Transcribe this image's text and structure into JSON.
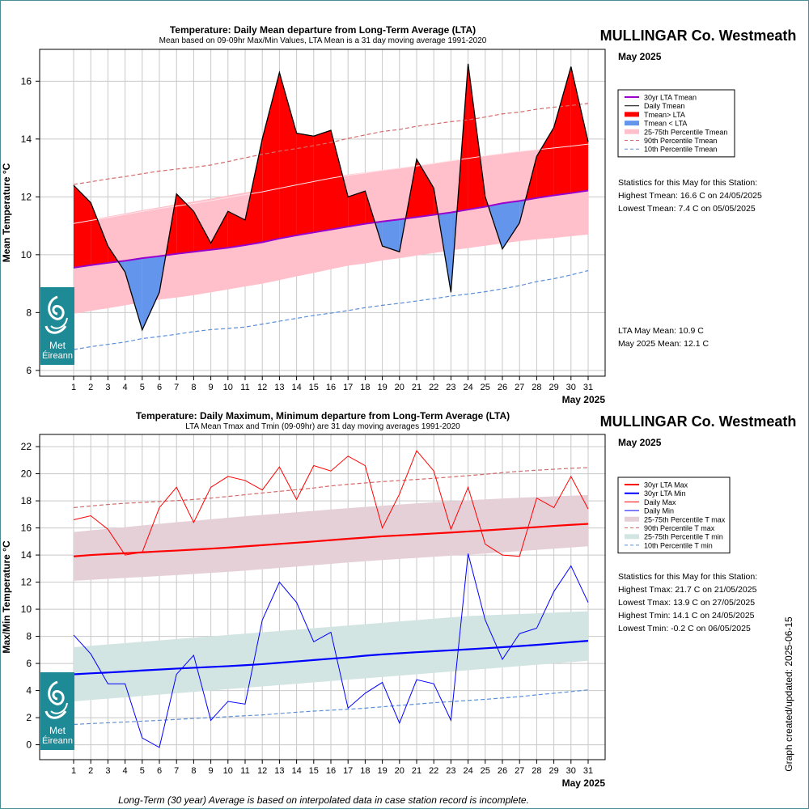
{
  "x_labels": [
    "1",
    "2",
    "3",
    "4",
    "5",
    "6",
    "7",
    "8",
    "9",
    "10",
    "11",
    "12",
    "13",
    "14",
    "15",
    "16",
    "17",
    "18",
    "19",
    "20",
    "21",
    "22",
    "23",
    "24",
    "25",
    "26",
    "27",
    "28",
    "29",
    "30",
    "31"
  ],
  "logo": {
    "line1": "Met",
    "line2": "Éireann"
  },
  "colors": {
    "logo_bg": "#1e8a96",
    "above_fill": "#ff0000",
    "below_fill": "#6495ed",
    "lta_mean": "#9900cc",
    "band_mean": "#ffc0cb",
    "p90": "#d46a6a",
    "p10": "#5c8fd8",
    "max_line": "#ff0000",
    "min_line": "#0000ff",
    "band_max": "#e6d0d8",
    "band_min": "#d3e5e3"
  },
  "panel1": {
    "title": "Temperature: Daily Mean departure from Long-Term Average (LTA)",
    "subtitle": "Mean based on 09-09hr Max/Min Values, LTA Mean is a 31 day moving average 1991-2020",
    "station": "MULLINGAR Co. Westmeath",
    "month": "May 2025",
    "ylabel": "Mean Temperature °C",
    "xlabel": "May 2025",
    "legend": [
      "30yr LTA Tmean",
      "Daily Tmean",
      "Tmean> LTA",
      "Tmean < LTA",
      "25-75th Percentile Tmean",
      "90th Percentile Tmean",
      "10th Percentile Tmean"
    ],
    "stats_heading": "Statistics for this May for this Station:",
    "stats": [
      "Highest Tmean: 16.6 C on 24/05/2025",
      "Lowest Tmean: 7.4 C on 05/05/2025"
    ],
    "summary": [
      "LTA May Mean: 10.9 C",
      "May 2025 Mean: 12.1 C"
    ]
  },
  "panel2": {
    "title": "Temperature: Daily Maximum, Minimum departure from Long-Term Average (LTA)",
    "subtitle": "LTA Mean Tmax and Tmin (09-09hr) are 31 day moving averages 1991-2020",
    "station": "MULLINGAR Co. Westmeath",
    "month": "May 2025",
    "ylabel": "Max/Min Temperature °C",
    "xlabel": "May 2025",
    "legend": [
      "30yr LTA Max",
      "30yr LTA Min",
      "Daily Max",
      "Daily Min",
      "25-75th Percentile T max",
      "90th Percentile T max",
      "25-75th Percentile T min",
      "10th Percentile T min"
    ],
    "stats_heading": "Statistics for this May for this Station:",
    "stats": [
      "Highest Tmax: 21.7 C on 21/05/2025",
      "Lowest Tmax: 13.9 C on 27/05/2025",
      "Highest Tmin: 14.1 C on 24/05/2025",
      "Lowest Tmin: -0.2 C on 06/05/2025"
    ]
  },
  "footer": "Long-Term (30 year) Average is based on interpolated data in case station record is incomplete.",
  "updated": "Graph created/updated:  2025-06-15",
  "chart_data": [
    {
      "type": "area",
      "title": "Temperature: Daily Mean departure from Long-Term Average (LTA)",
      "xlabel": "May 2025",
      "ylabel": "Mean Temperature °C",
      "x": [
        1,
        2,
        3,
        4,
        5,
        6,
        7,
        8,
        9,
        10,
        11,
        12,
        13,
        14,
        15,
        16,
        17,
        18,
        19,
        20,
        21,
        22,
        23,
        24,
        25,
        26,
        27,
        28,
        29,
        30,
        31
      ],
      "ylim": [
        5.8,
        17.1
      ],
      "yticks": [
        6,
        8,
        10,
        12,
        14,
        16
      ],
      "grid": true,
      "legend_position": "right",
      "series": [
        {
          "name": "Daily Tmean",
          "values": [
            12.4,
            11.8,
            10.3,
            9.4,
            7.4,
            8.7,
            12.1,
            11.5,
            10.4,
            11.5,
            11.2,
            14.0,
            16.3,
            14.2,
            14.1,
            14.3,
            12.0,
            12.2,
            10.3,
            10.1,
            13.3,
            12.3,
            8.7,
            16.6,
            12.0,
            10.2,
            11.1,
            13.4,
            14.4,
            16.5,
            13.9
          ]
        },
        {
          "name": "30yr LTA Tmean",
          "values": [
            9.55,
            9.64,
            9.72,
            9.79,
            9.88,
            9.95,
            10.03,
            10.1,
            10.17,
            10.24,
            10.33,
            10.43,
            10.56,
            10.67,
            10.77,
            10.87,
            10.97,
            11.07,
            11.15,
            11.22,
            11.3,
            11.38,
            11.46,
            11.56,
            11.66,
            11.78,
            11.86,
            11.96,
            12.05,
            12.13,
            12.22
          ]
        },
        {
          "name": "90th Percentile Tmean",
          "values": [
            12.43,
            12.52,
            12.62,
            12.7,
            12.8,
            12.89,
            12.96,
            13.02,
            13.1,
            13.22,
            13.35,
            13.47,
            13.58,
            13.67,
            13.77,
            13.88,
            14.02,
            14.14,
            14.26,
            14.33,
            14.44,
            14.52,
            14.6,
            14.66,
            14.76,
            14.87,
            14.93,
            15.03,
            15.1,
            15.16,
            15.23
          ]
        },
        {
          "name": "10th Percentile Tmean",
          "values": [
            6.72,
            6.82,
            6.9,
            6.98,
            7.1,
            7.17,
            7.25,
            7.34,
            7.41,
            7.45,
            7.5,
            7.6,
            7.7,
            7.8,
            7.9,
            7.98,
            8.07,
            8.17,
            8.25,
            8.32,
            8.4,
            8.48,
            8.57,
            8.64,
            8.72,
            8.82,
            8.93,
            9.07,
            9.17,
            9.3,
            9.45
          ]
        },
        {
          "name": "25-75th Percentile Tmean",
          "lower": [
            7.96,
            8.06,
            8.15,
            8.25,
            8.35,
            8.45,
            8.52,
            8.6,
            8.7,
            8.8,
            8.9,
            9.0,
            9.12,
            9.25,
            9.37,
            9.5,
            9.62,
            9.7,
            9.8,
            9.88,
            9.97,
            10.06,
            10.15,
            10.23,
            10.31,
            10.39,
            10.47,
            10.53,
            10.58,
            10.64,
            10.7
          ],
          "upper": [
            11.1,
            11.21,
            11.32,
            11.43,
            11.54,
            11.64,
            11.74,
            11.84,
            11.94,
            12.05,
            12.15,
            12.25,
            12.37,
            12.48,
            12.59,
            12.69,
            12.77,
            12.85,
            12.93,
            13.0,
            13.07,
            13.15,
            13.24,
            13.33,
            13.43,
            13.5,
            13.57,
            13.63,
            13.7,
            13.77,
            13.85
          ]
        }
      ]
    },
    {
      "type": "line",
      "title": "Temperature: Daily Maximum, Minimum departure from Long-Term Average (LTA)",
      "xlabel": "May 2025",
      "ylabel": "Max/Min Temperature °C",
      "x": [
        1,
        2,
        3,
        4,
        5,
        6,
        7,
        8,
        9,
        10,
        11,
        12,
        13,
        14,
        15,
        16,
        17,
        18,
        19,
        20,
        21,
        22,
        23,
        24,
        25,
        26,
        27,
        28,
        29,
        30,
        31
      ],
      "ylim": [
        -1.1,
        22.9
      ],
      "yticks": [
        0,
        2,
        4,
        6,
        8,
        10,
        12,
        14,
        16,
        18,
        20,
        22
      ],
      "grid": true,
      "legend_position": "right",
      "series": [
        {
          "name": "Daily Max",
          "values": [
            16.6,
            16.9,
            15.9,
            14.0,
            14.2,
            17.5,
            19.0,
            16.4,
            19.0,
            19.8,
            19.5,
            18.8,
            20.5,
            18.1,
            20.6,
            20.2,
            21.3,
            20.6,
            16.0,
            18.5,
            21.7,
            20.2,
            15.9,
            19.0,
            14.8,
            14.0,
            13.9,
            18.2,
            17.5,
            19.8,
            17.4
          ]
        },
        {
          "name": "Daily Min",
          "values": [
            8.1,
            6.7,
            4.5,
            4.5,
            0.5,
            -0.2,
            5.2,
            6.6,
            1.8,
            3.2,
            3.0,
            9.2,
            12.0,
            10.5,
            7.6,
            8.3,
            2.7,
            3.8,
            4.6,
            1.6,
            4.8,
            4.5,
            1.8,
            14.1,
            9.2,
            6.3,
            8.2,
            8.6,
            11.3,
            13.2,
            10.5
          ]
        },
        {
          "name": "30yr LTA Max",
          "values": [
            13.9,
            14.0,
            14.07,
            14.13,
            14.2,
            14.27,
            14.33,
            14.4,
            14.47,
            14.55,
            14.64,
            14.73,
            14.82,
            14.91,
            15.0,
            15.1,
            15.2,
            15.29,
            15.38,
            15.45,
            15.52,
            15.59,
            15.66,
            15.74,
            15.82,
            15.9,
            15.98,
            16.06,
            16.15,
            16.23,
            16.3
          ]
        },
        {
          "name": "30yr LTA Min",
          "values": [
            5.2,
            5.27,
            5.33,
            5.4,
            5.48,
            5.55,
            5.62,
            5.68,
            5.74,
            5.8,
            5.87,
            5.95,
            6.05,
            6.15,
            6.25,
            6.35,
            6.45,
            6.57,
            6.67,
            6.75,
            6.83,
            6.9,
            6.97,
            7.04,
            7.12,
            7.2,
            7.28,
            7.37,
            7.47,
            7.57,
            7.67
          ]
        },
        {
          "name": "90th Percentile T max",
          "values": [
            17.5,
            17.62,
            17.73,
            17.82,
            17.88,
            17.95,
            18.02,
            18.1,
            18.2,
            18.32,
            18.45,
            18.58,
            18.7,
            18.82,
            18.95,
            19.1,
            19.22,
            19.32,
            19.42,
            19.5,
            19.58,
            19.66,
            19.76,
            19.86,
            19.96,
            20.08,
            20.18,
            20.26,
            20.33,
            20.4,
            20.45
          ]
        },
        {
          "name": "10th Percentile T min",
          "values": [
            1.5,
            1.56,
            1.62,
            1.68,
            1.74,
            1.8,
            1.87,
            1.94,
            2.0,
            2.07,
            2.14,
            2.2,
            2.3,
            2.4,
            2.48,
            2.55,
            2.62,
            2.7,
            2.8,
            2.9,
            3.0,
            3.1,
            3.18,
            3.27,
            3.35,
            3.45,
            3.55,
            3.68,
            3.8,
            3.92,
            4.05
          ]
        },
        {
          "name": "25-75th Percentile T max",
          "lower": [
            12.1,
            12.17,
            12.24,
            12.31,
            12.38,
            12.45,
            12.52,
            12.6,
            12.68,
            12.76,
            12.85,
            12.95,
            13.05,
            13.15,
            13.25,
            13.35,
            13.45,
            13.54,
            13.63,
            13.71,
            13.79,
            13.87,
            13.95,
            14.03,
            14.11,
            14.2,
            14.29,
            14.38,
            14.47,
            14.56,
            14.65
          ],
          "upper": [
            15.7,
            15.82,
            15.94,
            16.06,
            16.18,
            16.3,
            16.42,
            16.53,
            16.64,
            16.75,
            16.86,
            16.96,
            17.06,
            17.16,
            17.26,
            17.36,
            17.46,
            17.55,
            17.64,
            17.73,
            17.81,
            17.89,
            17.97,
            18.04,
            18.11,
            18.17,
            18.23,
            18.28,
            18.33,
            18.38,
            18.42
          ]
        },
        {
          "name": "25-75th Percentile T min",
          "lower": [
            3.2,
            3.3,
            3.4,
            3.5,
            3.6,
            3.7,
            3.8,
            3.9,
            4.0,
            4.1,
            4.2,
            4.3,
            4.4,
            4.5,
            4.6,
            4.7,
            4.8,
            4.9,
            5.0,
            5.1,
            5.2,
            5.3,
            5.4,
            5.5,
            5.6,
            5.7,
            5.8,
            5.9,
            6.0,
            6.1,
            6.2
          ],
          "upper": [
            7.2,
            7.3,
            7.4,
            7.5,
            7.6,
            7.7,
            7.8,
            7.9,
            8.0,
            8.1,
            8.2,
            8.3,
            8.4,
            8.5,
            8.6,
            8.7,
            8.8,
            8.9,
            9.0,
            9.1,
            9.2,
            9.3,
            9.4,
            9.5,
            9.55,
            9.6,
            9.65,
            9.7,
            9.75,
            9.8,
            9.85
          ]
        }
      ]
    }
  ]
}
